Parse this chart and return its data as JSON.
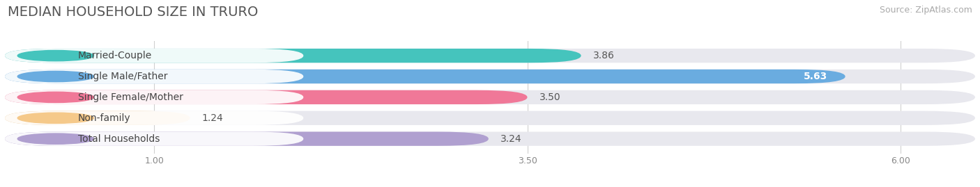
{
  "title": "MEDIAN HOUSEHOLD SIZE IN TRURO",
  "source": "Source: ZipAtlas.com",
  "categories": [
    "Married-Couple",
    "Single Male/Father",
    "Single Female/Mother",
    "Non-family",
    "Total Households"
  ],
  "values": [
    3.86,
    5.63,
    3.5,
    1.24,
    3.24
  ],
  "bar_colors": [
    "#45c4bd",
    "#6aace0",
    "#f07898",
    "#f5c98a",
    "#b0a0d0"
  ],
  "background_color": "#ffffff",
  "bar_bg_color": "#e8e8ee",
  "xlim": [
    0,
    6.5
  ],
  "xmin": 0,
  "xmax": 6.5,
  "xticks": [
    1.0,
    3.5,
    6.0
  ],
  "title_fontsize": 14,
  "source_fontsize": 9,
  "label_fontsize": 10,
  "value_fontsize": 10
}
